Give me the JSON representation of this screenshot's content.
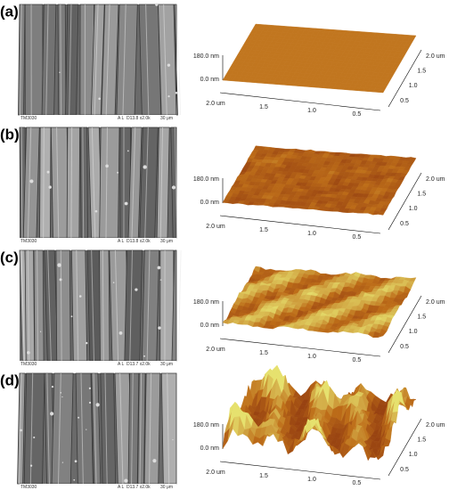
{
  "panels": [
    {
      "label": "(a)",
      "sem": {
        "instrument": "TM3030",
        "mode": "A L",
        "info": "D13.8 x2.0k",
        "scale": "30 μm"
      },
      "afm": {
        "z_labels": [
          "180.0 nm",
          "0.0 nm"
        ],
        "x_labels": [
          "2.0 um",
          "1.5",
          "1.0",
          "0.5"
        ],
        "y_labels": [
          "2.0 um",
          "1.5",
          "1.0",
          "0.5"
        ]
      }
    },
    {
      "label": "(b)",
      "sem": {
        "instrument": "TM3030",
        "mode": "A L",
        "info": "D13.8 x2.0k",
        "scale": "30 μm"
      },
      "afm": {
        "z_labels": [
          "180.0 nm",
          "0.0 nm"
        ],
        "x_labels": [
          "2.0 um",
          "1.5",
          "1.0",
          "0.5"
        ],
        "y_labels": [
          "2.0 um",
          "1.5",
          "1.0",
          "0.5"
        ]
      }
    },
    {
      "label": "(c)",
      "sem": {
        "instrument": "TM3030",
        "mode": "A L",
        "info": "D13.7 x2.0k",
        "scale": "30 μm"
      },
      "afm": {
        "z_labels": [
          "180.0 nm",
          "0.0 nm"
        ],
        "x_labels": [
          "2.0 um",
          "1.5",
          "1.0",
          "0.5"
        ],
        "y_labels": [
          "2.0 um",
          "1.5",
          "1.0",
          "0.5"
        ]
      }
    },
    {
      "label": "(d)",
      "sem": {
        "instrument": "TM3030",
        "mode": "A L",
        "info": "D13.7 x2.0k",
        "scale": "30 μm"
      },
      "afm": {
        "z_labels": [
          "180.0 nm",
          "0.0 nm"
        ],
        "x_labels": [
          "2.0 um",
          "1.5",
          "1.0",
          "0.5"
        ],
        "y_labels": [
          "2.0 um",
          "1.5",
          "1.0",
          "0.5"
        ]
      }
    }
  ]
}
